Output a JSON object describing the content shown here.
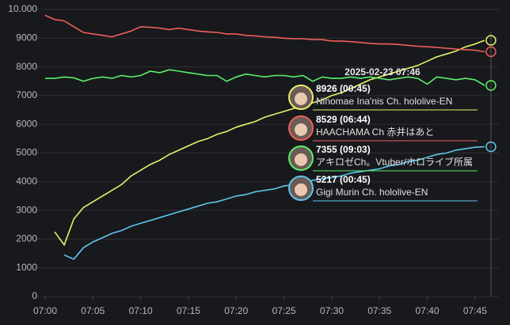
{
  "chart_data": {
    "type": "line",
    "x": [
      "07:00",
      "07:01",
      "07:02",
      "07:03",
      "07:04",
      "07:05",
      "07:06",
      "07:07",
      "07:08",
      "07:09",
      "07:10",
      "07:11",
      "07:12",
      "07:13",
      "07:14",
      "07:15",
      "07:16",
      "07:17",
      "07:18",
      "07:19",
      "07:20",
      "07:21",
      "07:22",
      "07:23",
      "07:24",
      "07:25",
      "07:26",
      "07:27",
      "07:28",
      "07:29",
      "07:30",
      "07:31",
      "07:32",
      "07:33",
      "07:34",
      "07:35",
      "07:36",
      "07:37",
      "07:38",
      "07:39",
      "07:40",
      "07:41",
      "07:42",
      "07:43",
      "07:44",
      "07:45",
      "07:46"
    ],
    "series": [
      {
        "name": "Ninomae Ina'nis Ch. hololive-EN",
        "color": "#e6f36b",
        "values": [
          null,
          2250,
          1800,
          2700,
          3100,
          3300,
          3500,
          3700,
          3900,
          4200,
          4400,
          4600,
          4750,
          4950,
          5100,
          5250,
          5400,
          5500,
          5650,
          5750,
          5900,
          6000,
          6100,
          6250,
          6350,
          6450,
          6550,
          6650,
          6750,
          6850,
          7000,
          7100,
          7250,
          7400,
          7550,
          7650,
          7750,
          7850,
          7950,
          8050,
          8200,
          8350,
          8450,
          8550,
          8700,
          8800,
          8926
        ]
      },
      {
        "name": "HAACHAMA Ch 赤井はあと",
        "color": "#ef5f5c",
        "values": [
          9800,
          9650,
          9600,
          9400,
          9200,
          9150,
          9100,
          9050,
          9150,
          9250,
          9400,
          9380,
          9350,
          9300,
          9350,
          9300,
          9250,
          9220,
          9200,
          9150,
          9150,
          9100,
          9080,
          9050,
          9030,
          9000,
          8980,
          8980,
          8950,
          8950,
          8900,
          8900,
          8880,
          8850,
          8820,
          8800,
          8800,
          8780,
          8750,
          8720,
          8700,
          8680,
          8650,
          8620,
          8600,
          8580,
          8529
        ]
      },
      {
        "name": "アキロゼCh。Vtuber/ホロライブ所属",
        "color": "#5cef6a",
        "values": [
          7600,
          7600,
          7650,
          7620,
          7500,
          7600,
          7650,
          7600,
          7700,
          7650,
          7700,
          7850,
          7800,
          7900,
          7850,
          7800,
          7750,
          7700,
          7700,
          7500,
          7650,
          7750,
          7700,
          7650,
          7700,
          7700,
          7650,
          7700,
          7500,
          7650,
          7600,
          7600,
          7650,
          7600,
          7650,
          7600,
          7550,
          7600,
          7650,
          7600,
          7400,
          7650,
          7600,
          7550,
          7600,
          7550,
          7355
        ]
      },
      {
        "name": "Gigi Murin Ch. hololive-EN",
        "color": "#5cc6ef",
        "values": [
          null,
          null,
          1450,
          1300,
          1700,
          1900,
          2050,
          2200,
          2300,
          2450,
          2550,
          2650,
          2750,
          2850,
          2950,
          3050,
          3150,
          3250,
          3300,
          3400,
          3500,
          3550,
          3650,
          3700,
          3750,
          3850,
          3900,
          3950,
          4050,
          4100,
          4150,
          4200,
          4300,
          4350,
          4400,
          4450,
          4550,
          4600,
          4700,
          4750,
          4850,
          4950,
          5000,
          5100,
          5150,
          5200,
          5217
        ]
      }
    ],
    "xlim": [
      "07:00",
      "07:47"
    ],
    "xticks": [
      "07:00",
      "07:05",
      "07:10",
      "07:15",
      "07:20",
      "07:25",
      "07:30",
      "07:35",
      "07:40",
      "07:45"
    ],
    "ylim": [
      0,
      10000
    ],
    "yticks": [
      0,
      1000,
      2000,
      3000,
      4000,
      5000,
      6000,
      7000,
      8000,
      9000,
      {
        "value": 10000,
        "label": "10.000"
      }
    ],
    "grid": true,
    "tooltip": {
      "title": "2025-02-23 07:46",
      "items": [
        "8926 (00:45)",
        "8529 (06:44)",
        "7355 (09:03)",
        "5217 (00:45)"
      ]
    }
  }
}
